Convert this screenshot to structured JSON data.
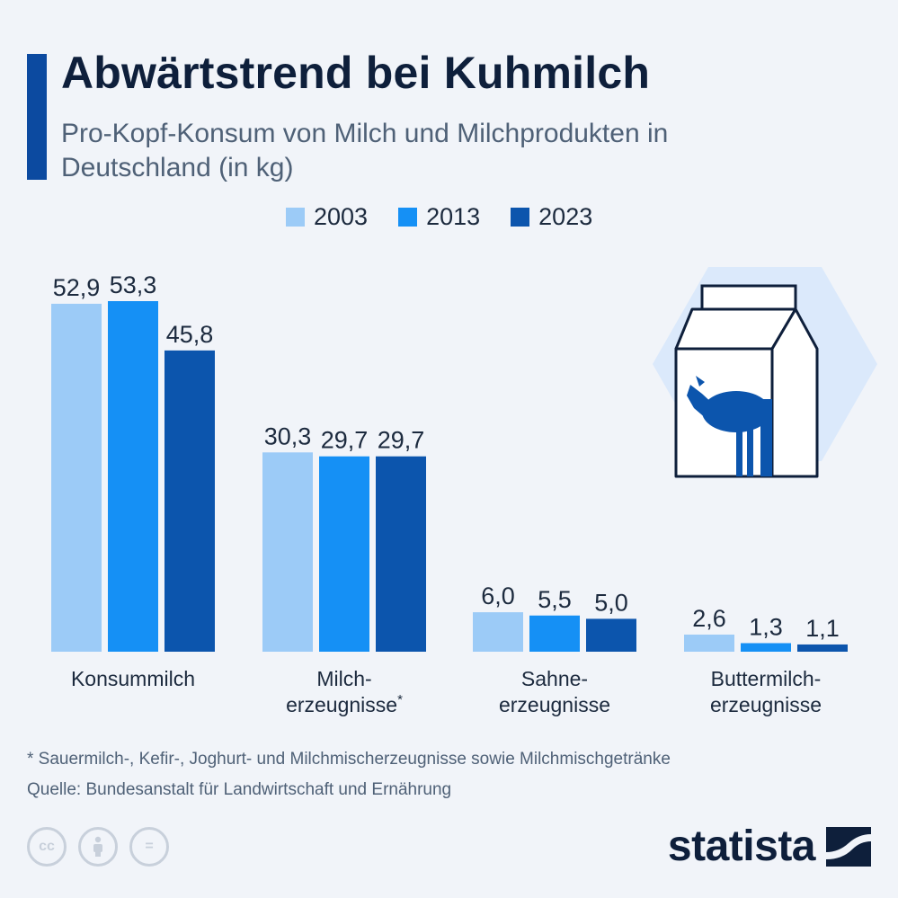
{
  "header": {
    "title": "Abwärtstrend bei Kuhmilch",
    "subtitle": "Pro-Kopf-Konsum von Milch und Milchprodukten in Deutschland (in kg)"
  },
  "legend": [
    {
      "label": "2003",
      "color": "#9ccbf7"
    },
    {
      "label": "2013",
      "color": "#1590f5"
    },
    {
      "label": "2023",
      "color": "#0c55ad"
    }
  ],
  "chart_data": {
    "type": "bar",
    "categories": [
      {
        "lines": [
          "Konsummilch"
        ],
        "superscript": ""
      },
      {
        "lines": [
          "Milch-",
          "erzeugnisse"
        ],
        "superscript": "*"
      },
      {
        "lines": [
          "Sahne-",
          "erzeugnisse"
        ],
        "superscript": ""
      },
      {
        "lines": [
          "Buttermilch-",
          "erzeugnisse"
        ],
        "superscript": ""
      }
    ],
    "series": [
      {
        "name": "2003",
        "color": "#9ccbf7",
        "values": [
          52.9,
          30.3,
          6.0,
          2.6
        ],
        "labels": [
          "52,9",
          "30,3",
          "6,0",
          "2,6"
        ]
      },
      {
        "name": "2013",
        "color": "#1590f5",
        "values": [
          53.3,
          29.7,
          5.5,
          1.3
        ],
        "labels": [
          "53,3",
          "29,7",
          "5,5",
          "1,3"
        ]
      },
      {
        "name": "2023",
        "color": "#0c55ad",
        "values": [
          45.8,
          29.7,
          5.0,
          1.1
        ],
        "labels": [
          "45,8",
          "29,7",
          "5,0",
          "1,1"
        ]
      }
    ],
    "ylim": [
      0,
      53.3
    ],
    "grid": false,
    "legend_position": "top"
  },
  "illustration": {
    "icon": "milk-carton-with-cow-icon"
  },
  "footer": {
    "footnote": "* Sauermilch-, Kefir-, Joghurt- und Milchmischerzeugnisse sowie Milchmischgetränke",
    "source": "Quelle: Bundesanstalt für Landwirtschaft und Ernährung",
    "license_icons": [
      {
        "name": "cc-icon",
        "glyph": "cc"
      },
      {
        "name": "attribution-icon",
        "glyph": " "
      },
      {
        "name": "no-derivatives-icon",
        "glyph": "="
      }
    ],
    "brand": "statista"
  }
}
